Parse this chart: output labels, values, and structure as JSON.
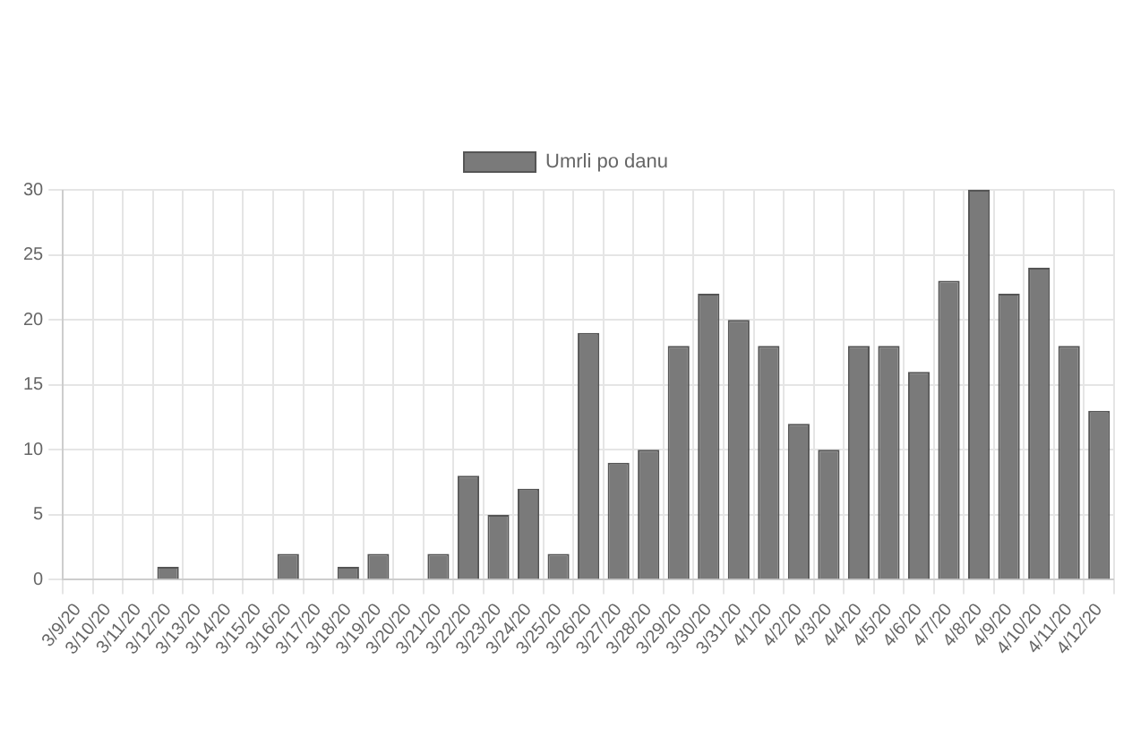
{
  "chart_data": {
    "type": "bar",
    "categories": [
      "3/9/20",
      "3/10/20",
      "3/11/20",
      "3/12/20",
      "3/13/20",
      "3/14/20",
      "3/15/20",
      "3/16/20",
      "3/17/20",
      "3/18/20",
      "3/19/20",
      "3/20/20",
      "3/21/20",
      "3/22/20",
      "3/23/20",
      "3/24/20",
      "3/25/20",
      "3/26/20",
      "3/27/20",
      "3/28/20",
      "3/29/20",
      "3/30/20",
      "3/31/20",
      "4/1/20",
      "4/2/20",
      "4/3/20",
      "4/4/20",
      "4/5/20",
      "4/6/20",
      "4/7/20",
      "4/8/20",
      "4/9/20",
      "4/10/20",
      "4/11/20",
      "4/12/20"
    ],
    "series": [
      {
        "name": "Umrli po danu",
        "color": "#7a7a7a",
        "values": [
          0,
          0,
          0,
          1,
          0,
          0,
          0,
          2,
          0,
          1,
          2,
          0,
          2,
          8,
          5,
          7,
          2,
          19,
          9,
          10,
          18,
          22,
          20,
          18,
          12,
          10,
          18,
          18,
          16,
          23,
          30,
          22,
          24,
          18,
          13
        ]
      }
    ],
    "ylim": [
      0,
      30
    ],
    "yticks": [
      0,
      5,
      10,
      15,
      20,
      25,
      30
    ],
    "grid": true,
    "legend": "top"
  }
}
